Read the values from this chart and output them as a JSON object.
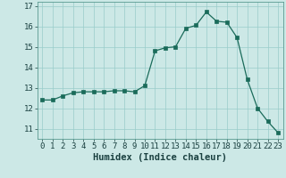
{
  "x": [
    0,
    1,
    2,
    3,
    4,
    5,
    6,
    7,
    8,
    9,
    10,
    11,
    12,
    13,
    14,
    15,
    16,
    17,
    18,
    19,
    20,
    21,
    22,
    23
  ],
  "y": [
    12.4,
    12.4,
    12.6,
    12.75,
    12.8,
    12.8,
    12.8,
    12.85,
    12.85,
    12.8,
    13.1,
    14.8,
    14.95,
    15.0,
    15.9,
    16.05,
    16.7,
    16.25,
    16.2,
    15.45,
    13.4,
    12.0,
    11.35,
    10.8
  ],
  "xlabel": "Humidex (Indice chaleur)",
  "ylim": [
    10.5,
    17.2
  ],
  "xlim": [
    -0.5,
    23.5
  ],
  "yticks": [
    11,
    12,
    13,
    14,
    15,
    16,
    17
  ],
  "xticks": [
    0,
    1,
    2,
    3,
    4,
    5,
    6,
    7,
    8,
    9,
    10,
    11,
    12,
    13,
    14,
    15,
    16,
    17,
    18,
    19,
    20,
    21,
    22,
    23
  ],
  "line_color": "#1a6b5a",
  "marker_color": "#1a6b5a",
  "bg_color": "#cce8e6",
  "grid_color": "#99ccca",
  "tick_label_fontsize": 6.5,
  "xlabel_fontsize": 7.5
}
